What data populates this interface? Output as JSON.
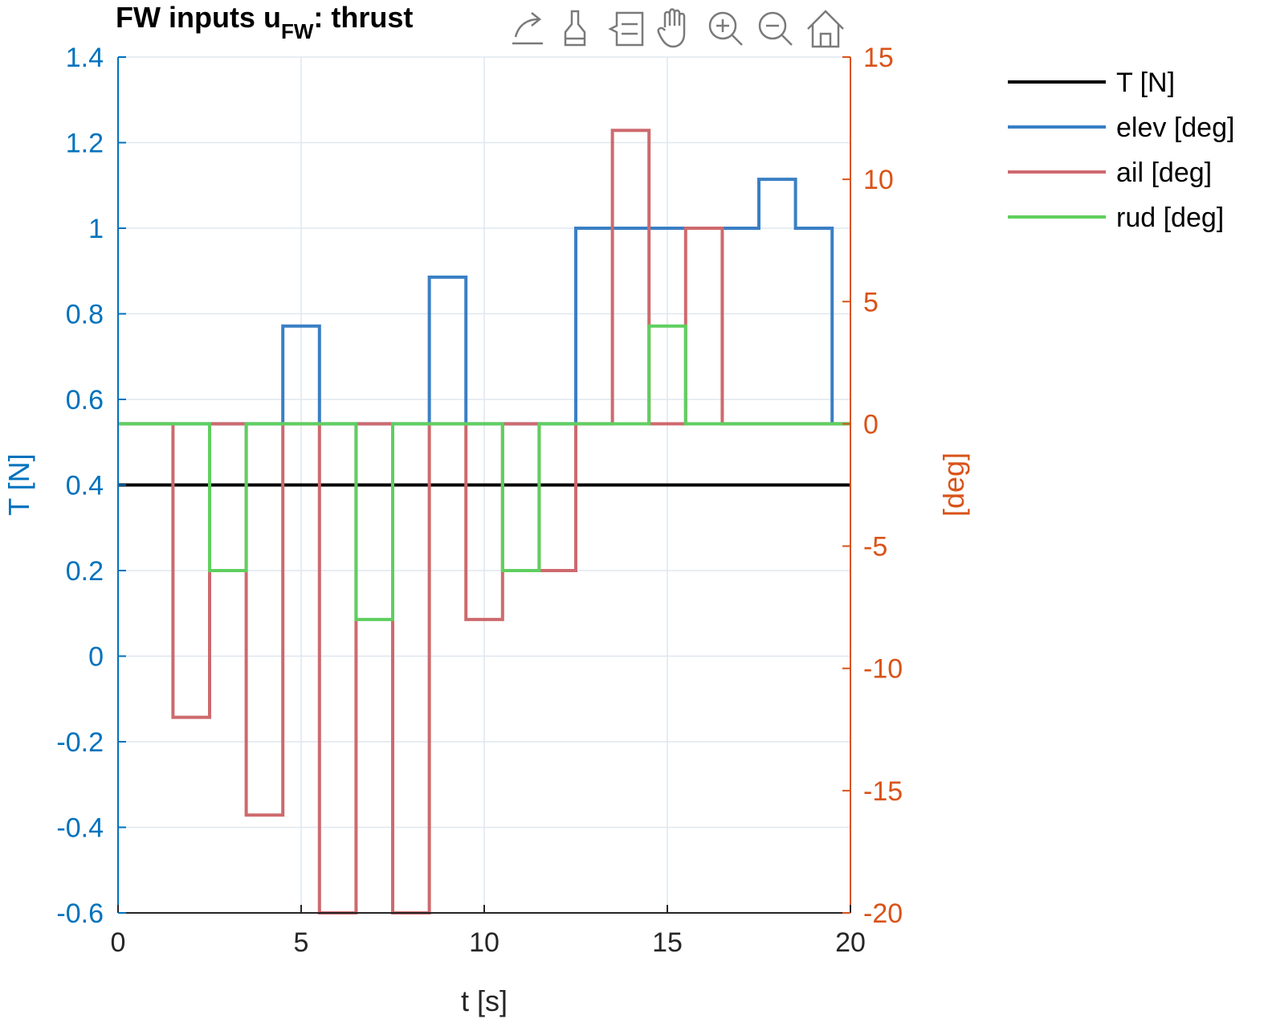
{
  "chart_data": {
    "type": "line",
    "title": "FW inputs u",
    "title_sub": "FW",
    "title_suffix": ": thrust",
    "xlabel": "t [s]",
    "ylabel_left": "T [N]",
    "ylabel_right": "[deg]",
    "xlim": [
      0,
      20
    ],
    "ylim_left": [
      -0.6,
      1.4
    ],
    "ylim_right": [
      -20,
      15
    ],
    "xticks": [
      "0",
      "5",
      "10",
      "15",
      "20"
    ],
    "yticks_left": [
      "-0.6",
      "-0.4",
      "-0.2",
      "0",
      "0.2",
      "0.4",
      "0.6",
      "0.8",
      "1",
      "1.2",
      "1.4"
    ],
    "yticks_right": [
      "-20",
      "-15",
      "-10",
      "-5",
      "0",
      "5",
      "10",
      "15"
    ],
    "grid": true,
    "legend_position": "outside-right",
    "step": true,
    "series": [
      {
        "name": "T [N]",
        "axis": "left",
        "color": "#000000",
        "x": [
          0,
          20
        ],
        "y": [
          0.4,
          0.4
        ]
      },
      {
        "name": "elev [deg]",
        "axis": "right",
        "color": "#3a7fc4",
        "x": [
          0,
          4.5,
          5.5,
          8.5,
          9.5,
          12.5,
          13.5,
          14.5,
          15.5,
          16.5,
          17.5,
          18.5,
          19.5,
          20
        ],
        "y": [
          0,
          4,
          0,
          6,
          0,
          8,
          8,
          8,
          8,
          8,
          10,
          8,
          0,
          0
        ]
      },
      {
        "name": "ail [deg]",
        "axis": "right",
        "color": "#cd6a6e",
        "x": [
          0,
          1.5,
          2.5,
          3.5,
          4.5,
          5.5,
          6.5,
          7.5,
          8.5,
          9.5,
          10.5,
          11.5,
          12.5,
          13.5,
          14.5,
          15.5,
          16.5,
          17.5,
          20
        ],
        "y": [
          0,
          -12,
          0,
          -16,
          0,
          -20,
          0,
          -20,
          0,
          -8,
          0,
          -6,
          0,
          12,
          0,
          8,
          0,
          0,
          0
        ]
      },
      {
        "name": "rud [deg]",
        "axis": "right",
        "color": "#5fcf60",
        "x": [
          0,
          2.5,
          3.5,
          6.5,
          7.5,
          10.5,
          11.5,
          14.5,
          15.5,
          20
        ],
        "y": [
          0,
          -6,
          0,
          -8,
          0,
          -6,
          0,
          4,
          0,
          0
        ]
      }
    ]
  }
}
